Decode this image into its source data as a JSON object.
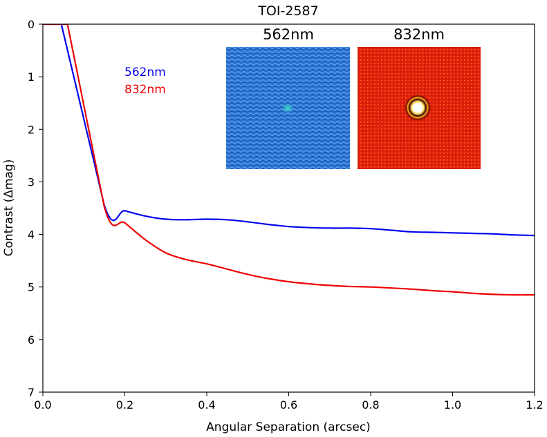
{
  "chart_data": {
    "type": "line",
    "title": "TOI-2587",
    "xlabel": "Angular Separation (arcsec)",
    "ylabel": "Contrast (Δmag)",
    "xlim": [
      0.0,
      1.2
    ],
    "ylim": [
      7,
      0
    ],
    "y_inverted": true,
    "grid": false,
    "x_ticks": [
      "0.0",
      "0.2",
      "0.4",
      "0.6",
      "0.8",
      "1.0",
      "1.2"
    ],
    "y_ticks": [
      "0",
      "1",
      "2",
      "3",
      "4",
      "5",
      "6",
      "7"
    ],
    "legend": {
      "placement": "upper-left",
      "entries": [
        {
          "label": "562nm",
          "color": "#0000ee"
        },
        {
          "label": "832nm",
          "color": "#ee0000"
        }
      ]
    },
    "series": [
      {
        "name": "562nm",
        "color": "#0000ee",
        "x": [
          0.0,
          0.045,
          0.15,
          0.2,
          0.25,
          0.3,
          0.35,
          0.4,
          0.45,
          0.5,
          0.55,
          0.6,
          0.65,
          0.7,
          0.75,
          0.8,
          0.85,
          0.9,
          0.95,
          1.0,
          1.05,
          1.1,
          1.15,
          1.2
        ],
        "y": [
          0.0,
          0.0,
          3.45,
          3.55,
          3.65,
          3.71,
          3.72,
          3.71,
          3.72,
          3.76,
          3.81,
          3.85,
          3.87,
          3.88,
          3.88,
          3.89,
          3.92,
          3.95,
          3.96,
          3.97,
          3.98,
          3.99,
          4.01,
          4.02
        ]
      },
      {
        "name": "832nm",
        "color": "#ee0000",
        "x": [
          0.0,
          0.06,
          0.15,
          0.2,
          0.25,
          0.3,
          0.35,
          0.4,
          0.45,
          0.5,
          0.55,
          0.6,
          0.65,
          0.7,
          0.75,
          0.8,
          0.85,
          0.9,
          0.95,
          1.0,
          1.05,
          1.1,
          1.15,
          1.2
        ],
        "y": [
          0.0,
          0.0,
          3.48,
          3.78,
          4.1,
          4.35,
          4.48,
          4.56,
          4.66,
          4.76,
          4.84,
          4.9,
          4.94,
          4.97,
          4.99,
          5.0,
          5.02,
          5.04,
          5.07,
          5.09,
          5.12,
          5.14,
          5.15,
          5.15
        ]
      }
    ],
    "insets": [
      {
        "label": "562nm",
        "color": "#0000ee",
        "image": "speckle-562nm",
        "background": "#2b6fd0"
      },
      {
        "label": "832nm",
        "color": "#ee0000",
        "image": "speckle-832nm",
        "background": "#e0200c"
      }
    ]
  }
}
